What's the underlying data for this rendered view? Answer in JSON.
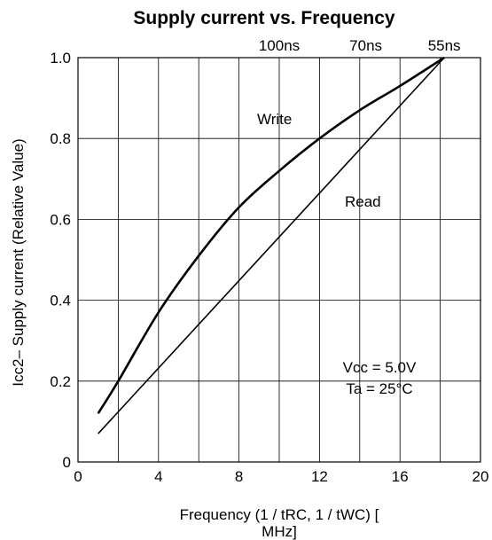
{
  "chart_data": {
    "type": "line",
    "title": "Supply current vs. Frequency",
    "xlabel_line1": "Frequency (1 / tRC, 1 / tWC) [",
    "xlabel_line2": "MHz]",
    "ylabel": "Icc2– Supply current (Relative Value)",
    "xlim": [
      0,
      20
    ],
    "ylim": [
      0,
      1.0
    ],
    "x_ticks": [
      0,
      4,
      8,
      12,
      16,
      20
    ],
    "x_tick_labels": [
      "0",
      "4",
      "8",
      "12",
      "16",
      "20"
    ],
    "x_grid": [
      0,
      2,
      4,
      6,
      8,
      10,
      12,
      14,
      16,
      18,
      20
    ],
    "y_ticks": [
      0,
      0.2,
      0.4,
      0.6,
      0.8,
      1.0
    ],
    "y_tick_labels": [
      "0",
      "0.2",
      "0.4",
      "0.6",
      "0.8",
      "1.0"
    ],
    "grid": true,
    "top_axis_labels": [
      {
        "x": 10,
        "label": "100ns"
      },
      {
        "x": 14.3,
        "label": "70ns"
      },
      {
        "x": 18.2,
        "label": "55ns"
      }
    ],
    "series": [
      {
        "name": "Write",
        "x": [
          1.0,
          2.0,
          4.0,
          6.0,
          8.0,
          10.0,
          12.0,
          14.0,
          16.0,
          18.2
        ],
        "y": [
          0.12,
          0.2,
          0.37,
          0.51,
          0.63,
          0.72,
          0.8,
          0.87,
          0.93,
          1.0
        ]
      },
      {
        "name": "Read",
        "x": [
          1.0,
          18.2
        ],
        "y": [
          0.07,
          1.0
        ]
      }
    ],
    "annotations": {
      "vcc": "Vcc = 5.0V",
      "ta": "Ta = 25°C"
    }
  }
}
